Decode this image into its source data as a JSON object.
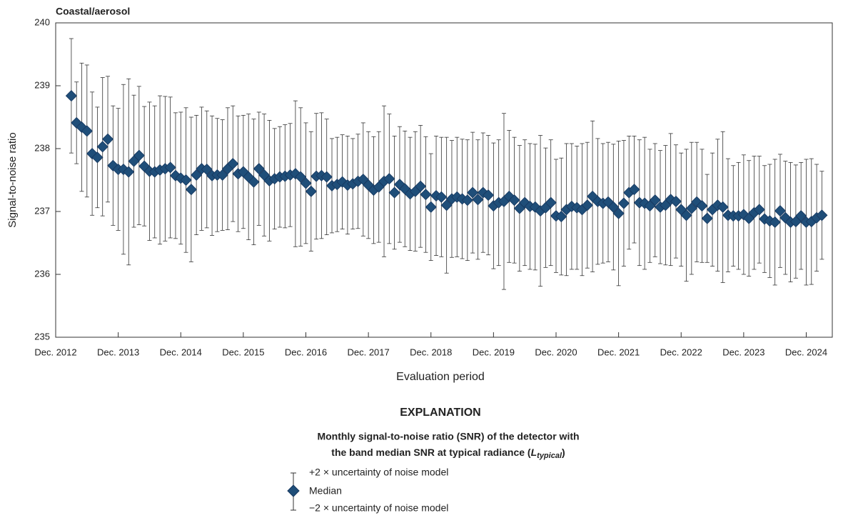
{
  "chart_data": {
    "type": "errorbar",
    "title": "Coastal/aerosol",
    "x_label": "Evaluation period",
    "y_label": "Signal-to-noise ratio",
    "ylim": [
      235,
      240
    ],
    "yticks": [
      235,
      236,
      237,
      238,
      239,
      240
    ],
    "xlim": [
      "2012-12",
      "2025-05"
    ],
    "xticks": [
      {
        "value": "2012-12",
        "label": "Dec. 2012"
      },
      {
        "value": "2013-12",
        "label": "Dec. 2013"
      },
      {
        "value": "2014-12",
        "label": "Dec. 2014"
      },
      {
        "value": "2015-12",
        "label": "Dec. 2015"
      },
      {
        "value": "2016-12",
        "label": "Dec. 2016"
      },
      {
        "value": "2017-12",
        "label": "Dec. 2017"
      },
      {
        "value": "2018-12",
        "label": "Dec. 2018"
      },
      {
        "value": "2019-12",
        "label": "Dec. 2019"
      },
      {
        "value": "2020-12",
        "label": "Dec. 2020"
      },
      {
        "value": "2021-12",
        "label": "Dec. 2021"
      },
      {
        "value": "2022-12",
        "label": "Dec. 2022"
      },
      {
        "value": "2023-12",
        "label": "Dec. 2023"
      },
      {
        "value": "2024-12",
        "label": "Dec. 2024"
      }
    ],
    "x": [
      "2013-03",
      "2013-04",
      "2013-05",
      "2013-06",
      "2013-07",
      "2013-08",
      "2013-09",
      "2013-10",
      "2013-11",
      "2013-12",
      "2014-01",
      "2014-02",
      "2014-03",
      "2014-04",
      "2014-05",
      "2014-06",
      "2014-07",
      "2014-08",
      "2014-09",
      "2014-10",
      "2014-11",
      "2014-12",
      "2015-01",
      "2015-02",
      "2015-03",
      "2015-04",
      "2015-05",
      "2015-06",
      "2015-07",
      "2015-08",
      "2015-09",
      "2015-10",
      "2015-11",
      "2015-12",
      "2016-01",
      "2016-02",
      "2016-03",
      "2016-04",
      "2016-05",
      "2016-06",
      "2016-07",
      "2016-08",
      "2016-09",
      "2016-10",
      "2016-11",
      "2016-12",
      "2017-01",
      "2017-02",
      "2017-03",
      "2017-04",
      "2017-05",
      "2017-06",
      "2017-07",
      "2017-08",
      "2017-09",
      "2017-10",
      "2017-11",
      "2017-12",
      "2018-01",
      "2018-02",
      "2018-03",
      "2018-04",
      "2018-05",
      "2018-06",
      "2018-07",
      "2018-08",
      "2018-09",
      "2018-10",
      "2018-11",
      "2018-12",
      "2019-01",
      "2019-02",
      "2019-03",
      "2019-04",
      "2019-05",
      "2019-06",
      "2019-07",
      "2019-08",
      "2019-09",
      "2019-10",
      "2019-11",
      "2019-12",
      "2020-01",
      "2020-02",
      "2020-03",
      "2020-04",
      "2020-05",
      "2020-06",
      "2020-07",
      "2020-08",
      "2020-09",
      "2020-10",
      "2020-11",
      "2020-12",
      "2021-01",
      "2021-02",
      "2021-03",
      "2021-04",
      "2021-05",
      "2021-06",
      "2021-07",
      "2021-08",
      "2021-09",
      "2021-10",
      "2021-11",
      "2021-12",
      "2022-01",
      "2022-02",
      "2022-03",
      "2022-04",
      "2022-05",
      "2022-06",
      "2022-07",
      "2022-08",
      "2022-09",
      "2022-10",
      "2022-11",
      "2022-12",
      "2023-01",
      "2023-02",
      "2023-03",
      "2023-04",
      "2023-05",
      "2023-06",
      "2023-07",
      "2023-08",
      "2023-09",
      "2023-10",
      "2023-11",
      "2023-12",
      "2024-01",
      "2024-02",
      "2024-03",
      "2024-04",
      "2024-05",
      "2024-06",
      "2024-07",
      "2024-08",
      "2024-09",
      "2024-10",
      "2024-11",
      "2024-12",
      "2025-01",
      "2025-02",
      "2025-03"
    ],
    "series": [
      {
        "name": "Median",
        "color": "#1f4e79",
        "values": [
          238.84,
          238.41,
          238.34,
          238.28,
          237.92,
          237.86,
          238.03,
          238.15,
          237.73,
          237.67,
          237.67,
          237.63,
          237.8,
          237.89,
          237.72,
          237.64,
          237.63,
          237.66,
          237.68,
          237.7,
          237.57,
          237.53,
          237.5,
          237.35,
          237.58,
          237.68,
          237.67,
          237.57,
          237.58,
          237.58,
          237.68,
          237.76,
          237.6,
          237.63,
          237.55,
          237.47,
          237.68,
          237.58,
          237.49,
          237.52,
          237.55,
          237.56,
          237.58,
          237.6,
          237.55,
          237.45,
          237.32,
          237.56,
          237.57,
          237.55,
          237.41,
          237.43,
          237.47,
          237.42,
          237.44,
          237.48,
          237.51,
          237.42,
          237.34,
          237.39,
          237.48,
          237.52,
          237.3,
          237.43,
          237.36,
          237.28,
          237.32,
          237.4,
          237.27,
          237.07,
          237.25,
          237.23,
          237.1,
          237.2,
          237.23,
          237.2,
          237.18,
          237.3,
          237.19,
          237.3,
          237.26,
          237.09,
          237.14,
          237.16,
          237.24,
          237.18,
          237.05,
          237.14,
          237.08,
          237.07,
          237.01,
          237.06,
          237.14,
          236.93,
          236.92,
          237.03,
          237.08,
          237.06,
          237.03,
          237.1,
          237.24,
          237.16,
          237.13,
          237.15,
          237.07,
          236.97,
          237.13,
          237.3,
          237.35,
          237.14,
          237.13,
          237.09,
          237.18,
          237.07,
          237.1,
          237.19,
          237.16,
          237.03,
          236.94,
          237.05,
          237.15,
          237.09,
          236.89,
          237.03,
          237.1,
          237.07,
          236.94,
          236.93,
          236.93,
          236.95,
          236.89,
          236.98,
          237.03,
          236.88,
          236.85,
          236.83,
          237.01,
          236.9,
          236.83,
          236.84,
          236.93,
          236.83,
          236.84,
          236.9,
          236.94
        ],
        "errors": [
          0.91,
          0.65,
          1.02,
          1.05,
          0.98,
          0.8,
          1.1,
          1.0,
          0.95,
          0.97,
          1.35,
          1.48,
          1.05,
          1.1,
          0.95,
          1.1,
          1.05,
          1.18,
          1.15,
          1.12,
          1.0,
          1.05,
          1.15,
          1.15,
          0.95,
          0.98,
          0.93,
          0.95,
          0.9,
          0.88,
          0.97,
          0.92,
          0.92,
          0.9,
          1.0,
          1.0,
          0.9,
          0.97,
          0.96,
          0.8,
          0.8,
          0.82,
          0.82,
          1.16,
          1.1,
          0.96,
          0.95,
          1.0,
          1.0,
          0.92,
          0.75,
          0.75,
          0.75,
          0.78,
          0.72,
          0.75,
          0.9,
          0.85,
          0.85,
          0.88,
          1.2,
          1.03,
          0.9,
          0.92,
          0.92,
          0.9,
          0.95,
          0.97,
          0.92,
          0.85,
          0.95,
          0.95,
          1.08,
          0.93,
          0.95,
          0.95,
          0.96,
          0.96,
          0.95,
          0.95,
          0.95,
          1.0,
          1.0,
          1.4,
          1.05,
          1.0,
          1.0,
          1.0,
          1.0,
          1.0,
          1.2,
          0.95,
          1.0,
          0.9,
          0.93,
          1.05,
          1.0,
          0.98,
          1.05,
          1.0,
          1.2,
          1.0,
          0.95,
          0.95,
          1.0,
          1.15,
          1.0,
          0.9,
          0.85,
          1.0,
          1.05,
          0.9,
          0.9,
          0.9,
          0.95,
          1.05,
          0.9,
          0.9,
          1.05,
          1.05,
          0.95,
          0.9,
          0.7,
          0.9,
          1.05,
          1.2,
          0.9,
          0.8,
          0.85,
          0.95,
          0.92,
          0.9,
          0.85,
          0.85,
          0.9,
          1.0,
          0.9,
          0.9,
          0.95,
          0.9,
          0.85,
          1.0,
          1.0,
          0.85,
          0.7
        ]
      }
    ],
    "explanation": {
      "title": "EXPLANATION",
      "caption_line1": "Monthly signal-to-noise ratio (SNR) of the detector with",
      "caption_line2": "the band median SNR at typical radiance (",
      "caption_symbol": "L",
      "caption_subscript": "typical",
      "caption_close": ")",
      "upper": "+2 × uncertainty of noise model",
      "lower": "−2 × uncertainty of noise model"
    }
  }
}
